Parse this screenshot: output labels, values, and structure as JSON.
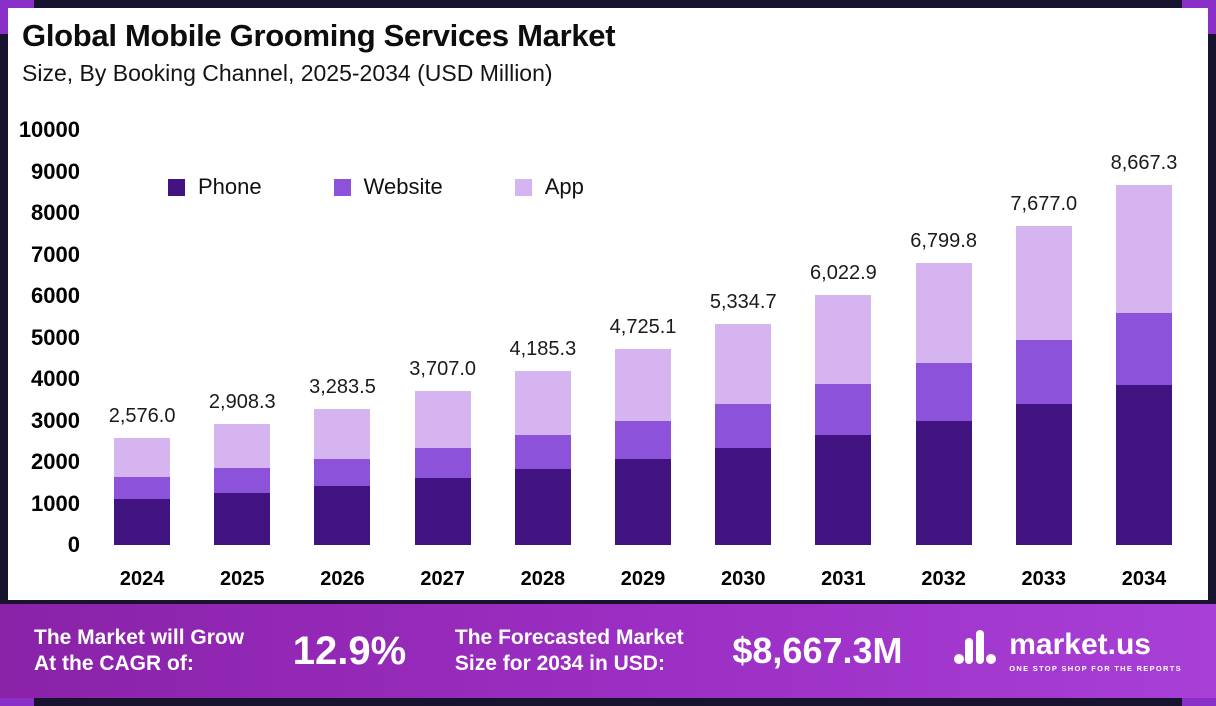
{
  "header": {
    "title": "Global Mobile Grooming Services Market",
    "subtitle": "Size, By Booking Channel, 2025-2034 (USD Million)"
  },
  "chart_data": {
    "type": "bar",
    "stacked": true,
    "title": "Global Mobile Grooming Services Market Size, By Booking Channel, 2025-2034 (USD Million)",
    "unit": "USD Million",
    "categories": [
      "2024",
      "2025",
      "2026",
      "2027",
      "2028",
      "2029",
      "2030",
      "2031",
      "2032",
      "2033",
      "2034"
    ],
    "series": [
      {
        "name": "Phone",
        "color": "#411380",
        "values": [
          1100,
          1250,
          1420,
          1620,
          1830,
          2070,
          2330,
          2640,
          2980,
          3400,
          3850
        ]
      },
      {
        "name": "Website",
        "color": "#8c52d9",
        "values": [
          550,
          600,
          660,
          730,
          820,
          930,
          1070,
          1230,
          1400,
          1550,
          1750
        ]
      },
      {
        "name": "App",
        "color": "#d6b4f0",
        "values": [
          926.0,
          1058.3,
          1203.5,
          1357.0,
          1535.3,
          1725.1,
          1934.7,
          2152.9,
          2419.8,
          2727.0,
          3067.3
        ]
      }
    ],
    "totals": [
      2576.0,
      2908.3,
      3283.5,
      3707.0,
      4185.3,
      4725.1,
      5334.7,
      6022.9,
      6799.8,
      7677.0,
      8667.3
    ],
    "total_labels": [
      "2,576.0",
      "2,908.3",
      "3,283.5",
      "3,707.0",
      "4,185.3",
      "4,725.1",
      "5,334.7",
      "6,022.9",
      "6,799.8",
      "7,677.0",
      "8,667.3"
    ],
    "ylim": [
      0,
      10000
    ],
    "yticks": [
      0,
      1000,
      2000,
      3000,
      4000,
      5000,
      6000,
      7000,
      8000,
      9000,
      10000
    ],
    "grid": false,
    "legend_position": "top-left"
  },
  "footer": {
    "cagr_label": "The Market will Grow\nAt the CAGR of:",
    "cagr_value": "12.9%",
    "forecast_label": "The Forecasted Market\nSize for 2034 in USD:",
    "forecast_value": "$8,667.3M",
    "brand_name": "market.us",
    "brand_tagline": "ONE STOP SHOP FOR THE REPORTS"
  },
  "colors": {
    "frame": "#18142f",
    "corner_accent": "#8b2fc9",
    "panel_bg": "#ffffff",
    "banner_gradient_start": "#8a22a8",
    "banner_gradient_end": "#a83fd6",
    "phone": "#411380",
    "website": "#8c52d9",
    "app": "#d6b4f0"
  }
}
